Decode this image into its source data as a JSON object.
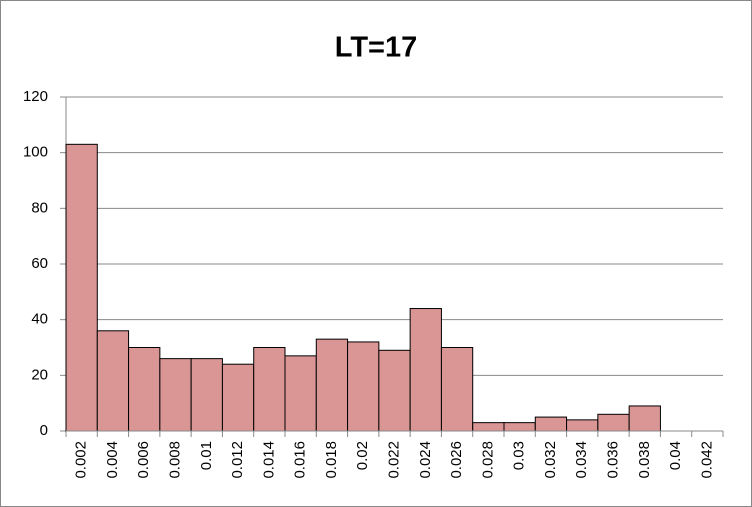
{
  "chart_data": {
    "type": "bar",
    "title": "LT=17",
    "categories": [
      "0.002",
      "0.004",
      "0.006",
      "0.008",
      "0.01",
      "0.012",
      "0.014",
      "0.016",
      "0.018",
      "0.02",
      "0.022",
      "0.024",
      "0.026",
      "0.028",
      "0.03",
      "0.032",
      "0.034",
      "0.036",
      "0.038",
      "0.04",
      "0.042"
    ],
    "values": [
      103,
      36,
      30,
      26,
      26,
      24,
      30,
      27,
      33,
      32,
      29,
      44,
      30,
      3,
      3,
      5,
      4,
      6,
      9,
      0,
      0
    ],
    "color": "#d99694",
    "ylim": [
      0,
      120
    ],
    "yticks": [
      0,
      20,
      40,
      60,
      80,
      100,
      120
    ],
    "grid": true
  }
}
